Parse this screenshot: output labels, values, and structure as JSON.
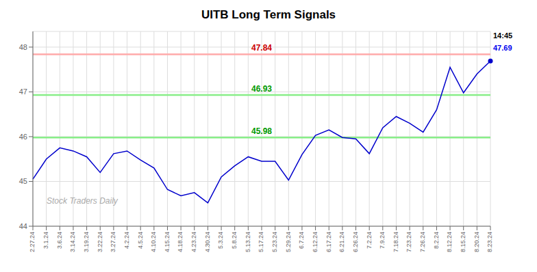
{
  "chart_data": {
    "type": "line",
    "title": "UITB Long Term Signals",
    "categories": [
      "2.27.24",
      "3.1.24",
      "3.6.24",
      "3.14.24",
      "3.19.24",
      "3.22.24",
      "3.27.24",
      "4.2.24",
      "4.5.24",
      "4.10.24",
      "4.15.24",
      "4.18.24",
      "4.23.24",
      "4.30.24",
      "5.3.24",
      "5.8.24",
      "5.13.24",
      "5.17.24",
      "5.23.24",
      "5.29.24",
      "6.7.24",
      "6.12.24",
      "6.17.24",
      "6.21.24",
      "6.26.24",
      "7.2.24",
      "7.9.24",
      "7.18.24",
      "7.23.24",
      "7.26.24",
      "8.2.24",
      "8.12.24",
      "8.15.24",
      "8.20.24",
      "8.23.24"
    ],
    "values": [
      45.05,
      45.5,
      45.75,
      45.68,
      45.55,
      45.2,
      45.62,
      45.68,
      45.48,
      45.3,
      44.82,
      44.68,
      44.75,
      44.52,
      45.1,
      45.35,
      45.55,
      45.45,
      45.45,
      45.03,
      45.6,
      46.03,
      46.15,
      45.98,
      45.95,
      45.62,
      46.2,
      46.45,
      46.3,
      46.1,
      46.6,
      47.55,
      46.98,
      47.4,
      47.69
    ],
    "color": "#0000cc",
    "ylim": [
      44,
      48.35
    ],
    "yticks": [
      44,
      45,
      46,
      47,
      48
    ],
    "grid": true,
    "reference_lines": [
      {
        "value": 47.84,
        "label": "47.84",
        "color": "#ffaaaa",
        "label_color": "#cc0000"
      },
      {
        "value": 46.93,
        "label": "46.93",
        "color": "#88ee88",
        "label_color": "#009900"
      },
      {
        "value": 45.98,
        "label": "45.98",
        "color": "#88ee88",
        "label_color": "#009900"
      }
    ],
    "last_time": "14:45",
    "last_time_color": "#000000",
    "last_price": 47.69,
    "last_price_color": "#0000ee",
    "watermark": "Stock Traders Daily",
    "watermark_color": "#aaaaaa"
  }
}
